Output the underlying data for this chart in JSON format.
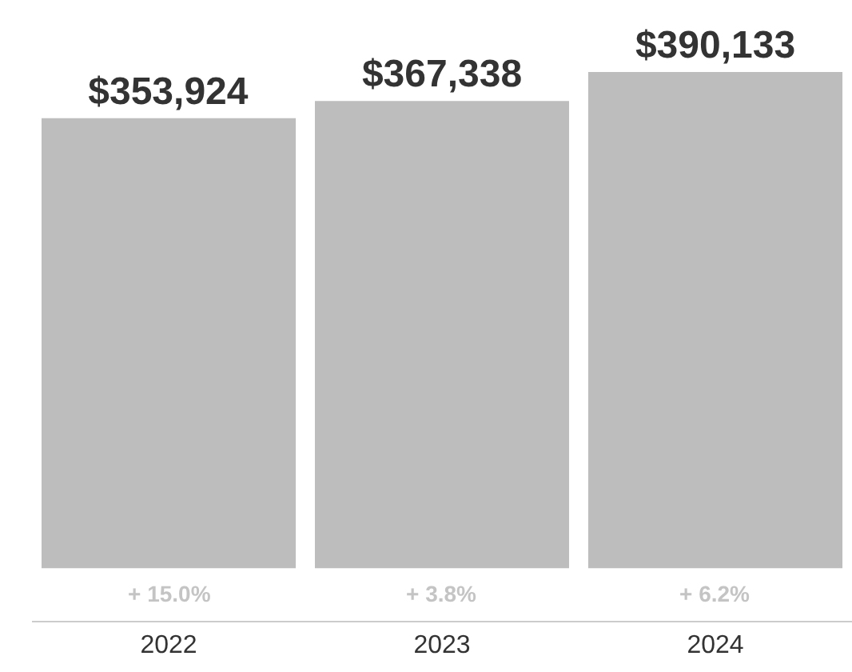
{
  "chart_data": {
    "type": "bar",
    "categories": [
      "2022",
      "2023",
      "2024"
    ],
    "values": [
      353924,
      367338,
      390133
    ],
    "value_labels": [
      "$353,924",
      "$367,338",
      "$390,133"
    ],
    "color": "#bdbdbd",
    "annotations": [
      {
        "text": "+ 15.0%",
        "x": "2022",
        "y": 0
      },
      {
        "text": "+ 3.8%",
        "x": "2023",
        "y": 0
      },
      {
        "text": "+ 6.2%",
        "x": "2024",
        "y": 0
      }
    ]
  }
}
